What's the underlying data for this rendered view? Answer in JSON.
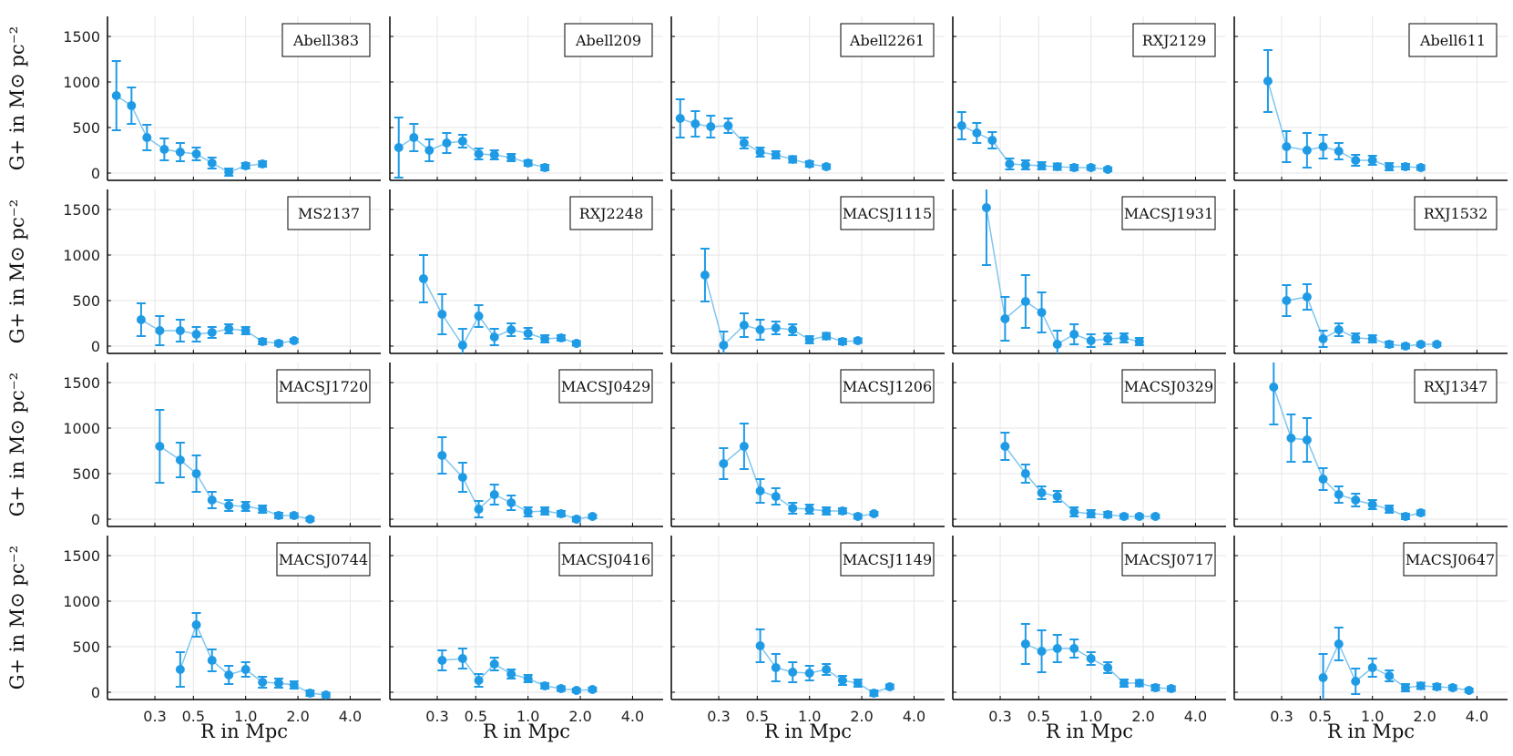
{
  "chart_data": {
    "type": "scatter",
    "layout": "4x5 small multiples, shared axes",
    "xlabel": "R in Mpc",
    "ylabel": "G+ in M⊙ pc⁻²",
    "xscale": "log",
    "xlim": [
      0.16,
      6.0
    ],
    "ylim": [
      -80,
      1720
    ],
    "xticks": [
      0.3,
      0.5,
      1.0,
      2.0,
      4.0
    ],
    "xtick_labels": [
      "0.3",
      "0.5",
      "1.0",
      "2.0",
      "4.0"
    ],
    "yticks": [
      0,
      500,
      1000,
      1500
    ],
    "ytick_labels": [
      "0",
      "500",
      "1000",
      "1500"
    ],
    "grid": true,
    "legend_position": "top-right",
    "series_color": "#1f9be6",
    "panels": [
      {
        "name": "Abell383",
        "x": [
          0.18,
          0.22,
          0.27,
          0.34,
          0.42,
          0.52,
          0.64,
          0.8,
          1.0,
          1.25,
          1.55,
          1.9
        ],
        "y": [
          850,
          740,
          390,
          260,
          230,
          210,
          110,
          10,
          80,
          100,
          null,
          null
        ],
        "err": [
          380,
          200,
          140,
          120,
          100,
          70,
          60,
          40,
          30,
          30,
          0,
          0
        ]
      },
      {
        "name": "Abell209",
        "x": [
          0.18,
          0.22,
          0.27,
          0.34,
          0.42,
          0.52,
          0.64,
          0.8,
          1.0,
          1.25,
          1.55
        ],
        "y": [
          280,
          390,
          250,
          330,
          350,
          210,
          200,
          170,
          110,
          60,
          null
        ],
        "err": [
          330,
          150,
          120,
          110,
          70,
          60,
          50,
          40,
          30,
          30,
          0
        ]
      },
      {
        "name": "Abell2261",
        "x": [
          0.18,
          0.22,
          0.27,
          0.34,
          0.42,
          0.52,
          0.64,
          0.8,
          1.0,
          1.25,
          1.55
        ],
        "y": [
          600,
          540,
          510,
          520,
          330,
          230,
          200,
          150,
          100,
          70,
          null
        ],
        "err": [
          210,
          140,
          120,
          80,
          60,
          50,
          40,
          35,
          30,
          25,
          0
        ]
      },
      {
        "name": "RXJ2129",
        "x": [
          0.18,
          0.22,
          0.27,
          0.34,
          0.42,
          0.52,
          0.64,
          0.8,
          1.0,
          1.25,
          1.55
        ],
        "y": [
          520,
          440,
          360,
          100,
          90,
          80,
          70,
          60,
          60,
          40,
          null
        ],
        "err": [
          150,
          110,
          90,
          60,
          50,
          40,
          35,
          30,
          25,
          20,
          0
        ]
      },
      {
        "name": "Abell611",
        "x": [
          0.25,
          0.32,
          0.42,
          0.52,
          0.64,
          0.8,
          1.0,
          1.25,
          1.55,
          1.9,
          2.35
        ],
        "y": [
          1010,
          290,
          250,
          290,
          240,
          140,
          140,
          70,
          70,
          60,
          null
        ],
        "err": [
          340,
          170,
          190,
          130,
          90,
          60,
          50,
          40,
          30,
          25,
          0
        ]
      },
      {
        "name": "MS2137",
        "x": [
          0.25,
          0.32,
          0.42,
          0.52,
          0.64,
          0.8,
          1.0,
          1.25,
          1.55,
          1.9,
          2.35
        ],
        "y": [
          290,
          170,
          170,
          130,
          150,
          190,
          170,
          50,
          30,
          60,
          null
        ],
        "err": [
          180,
          160,
          120,
          80,
          60,
          50,
          40,
          30,
          25,
          20,
          0
        ]
      },
      {
        "name": "RXJ2248",
        "x": [
          0.25,
          0.32,
          0.42,
          0.52,
          0.64,
          0.8,
          1.0,
          1.25,
          1.55,
          1.9,
          2.35
        ],
        "y": [
          740,
          350,
          10,
          330,
          100,
          180,
          140,
          80,
          90,
          30,
          null
        ],
        "err": [
          260,
          220,
          180,
          120,
          90,
          70,
          60,
          40,
          30,
          25,
          0
        ]
      },
      {
        "name": "MACSJ1115",
        "x": [
          0.25,
          0.32,
          0.42,
          0.52,
          0.64,
          0.8,
          1.0,
          1.25,
          1.55,
          1.9,
          2.35
        ],
        "y": [
          780,
          10,
          230,
          180,
          200,
          180,
          70,
          110,
          50,
          60,
          null
        ],
        "err": [
          290,
          150,
          130,
          110,
          70,
          60,
          40,
          35,
          30,
          25,
          0
        ]
      },
      {
        "name": "MACSJ1931",
        "x": [
          0.25,
          0.32,
          0.42,
          0.52,
          0.64,
          0.8,
          1.0,
          1.25,
          1.55,
          1.9,
          2.35
        ],
        "y": [
          1520,
          300,
          490,
          370,
          20,
          130,
          60,
          80,
          90,
          50,
          null
        ],
        "err": [
          630,
          240,
          290,
          220,
          150,
          110,
          70,
          60,
          50,
          40,
          0
        ]
      },
      {
        "name": "RXJ1532",
        "x": [
          0.32,
          0.42,
          0.52,
          0.64,
          0.8,
          1.0,
          1.25,
          1.55,
          1.9,
          2.35,
          2.9
        ],
        "y": [
          500,
          540,
          80,
          180,
          90,
          80,
          20,
          0,
          20,
          20,
          null
        ],
        "err": [
          170,
          140,
          90,
          70,
          50,
          40,
          30,
          25,
          20,
          20,
          0
        ]
      },
      {
        "name": "MACSJ1720",
        "x": [
          0.32,
          0.42,
          0.52,
          0.64,
          0.8,
          1.0,
          1.25,
          1.55,
          1.9,
          2.35,
          2.9
        ],
        "y": [
          800,
          650,
          500,
          210,
          150,
          140,
          110,
          40,
          40,
          0,
          null
        ],
        "err": [
          400,
          190,
          200,
          90,
          60,
          50,
          40,
          30,
          25,
          20,
          0
        ]
      },
      {
        "name": "MACSJ0429",
        "x": [
          0.32,
          0.42,
          0.52,
          0.64,
          0.8,
          1.0,
          1.25,
          1.55,
          1.9,
          2.35,
          2.9
        ],
        "y": [
          700,
          460,
          110,
          270,
          180,
          80,
          90,
          60,
          0,
          30,
          null
        ],
        "err": [
          200,
          160,
          90,
          110,
          80,
          50,
          40,
          30,
          25,
          20,
          0
        ]
      },
      {
        "name": "MACSJ1206",
        "x": [
          0.32,
          0.42,
          0.52,
          0.64,
          0.8,
          1.0,
          1.25,
          1.55,
          1.9,
          2.35,
          2.9
        ],
        "y": [
          610,
          800,
          310,
          250,
          120,
          110,
          90,
          90,
          30,
          60,
          null
        ],
        "err": [
          170,
          250,
          130,
          90,
          60,
          50,
          40,
          30,
          25,
          20,
          0
        ]
      },
      {
        "name": "MACSJ0329",
        "x": [
          0.32,
          0.42,
          0.52,
          0.64,
          0.8,
          1.0,
          1.25,
          1.55,
          1.9,
          2.35,
          2.9
        ],
        "y": [
          800,
          500,
          290,
          250,
          80,
          60,
          50,
          30,
          30,
          30,
          null
        ],
        "err": [
          150,
          100,
          70,
          60,
          50,
          40,
          30,
          25,
          20,
          20,
          0
        ]
      },
      {
        "name": "RXJ1347",
        "x": [
          0.27,
          0.34,
          0.42,
          0.52,
          0.64,
          0.8,
          1.0,
          1.25,
          1.55,
          1.9,
          2.35
        ],
        "y": [
          1450,
          890,
          870,
          440,
          270,
          210,
          160,
          110,
          30,
          70,
          null
        ],
        "err": [
          410,
          260,
          240,
          120,
          90,
          70,
          50,
          40,
          30,
          25,
          0
        ]
      },
      {
        "name": "MACSJ0744",
        "x": [
          0.42,
          0.52,
          0.64,
          0.8,
          1.0,
          1.25,
          1.55,
          1.9,
          2.35,
          2.9,
          3.6
        ],
        "y": [
          250,
          740,
          350,
          190,
          250,
          110,
          100,
          80,
          -10,
          -30,
          null
        ],
        "err": [
          190,
          130,
          120,
          100,
          80,
          60,
          50,
          40,
          30,
          25,
          0
        ]
      },
      {
        "name": "MACSJ0416",
        "x": [
          0.32,
          0.42,
          0.52,
          0.64,
          0.8,
          1.0,
          1.25,
          1.55,
          1.9,
          2.35,
          2.9
        ],
        "y": [
          350,
          370,
          130,
          310,
          200,
          150,
          70,
          40,
          20,
          30,
          null
        ],
        "err": [
          110,
          110,
          70,
          70,
          50,
          40,
          30,
          25,
          20,
          20,
          0
        ]
      },
      {
        "name": "MACSJ1149",
        "x": [
          0.52,
          0.64,
          0.8,
          1.0,
          1.25,
          1.55,
          1.9,
          2.35,
          2.9,
          3.6,
          4.5
        ],
        "y": [
          510,
          270,
          220,
          210,
          250,
          130,
          100,
          -10,
          60,
          null,
          null
        ],
        "err": [
          180,
          150,
          110,
          80,
          60,
          50,
          40,
          30,
          25,
          0,
          0
        ]
      },
      {
        "name": "MACSJ0717",
        "x": [
          0.42,
          0.52,
          0.64,
          0.8,
          1.0,
          1.25,
          1.55,
          1.9,
          2.35,
          2.9,
          3.6
        ],
        "y": [
          530,
          450,
          480,
          480,
          370,
          270,
          100,
          100,
          50,
          40,
          null
        ],
        "err": [
          220,
          230,
          150,
          100,
          70,
          60,
          40,
          35,
          30,
          25,
          0
        ]
      },
      {
        "name": "MACSJ0647",
        "x": [
          0.52,
          0.64,
          0.8,
          1.0,
          1.25,
          1.55,
          1.9,
          2.35,
          2.9,
          3.6,
          4.5
        ],
        "y": [
          160,
          530,
          120,
          270,
          180,
          50,
          70,
          60,
          50,
          20,
          null
        ],
        "err": [
          260,
          180,
          140,
          100,
          60,
          40,
          35,
          30,
          25,
          20,
          0
        ]
      }
    ]
  }
}
